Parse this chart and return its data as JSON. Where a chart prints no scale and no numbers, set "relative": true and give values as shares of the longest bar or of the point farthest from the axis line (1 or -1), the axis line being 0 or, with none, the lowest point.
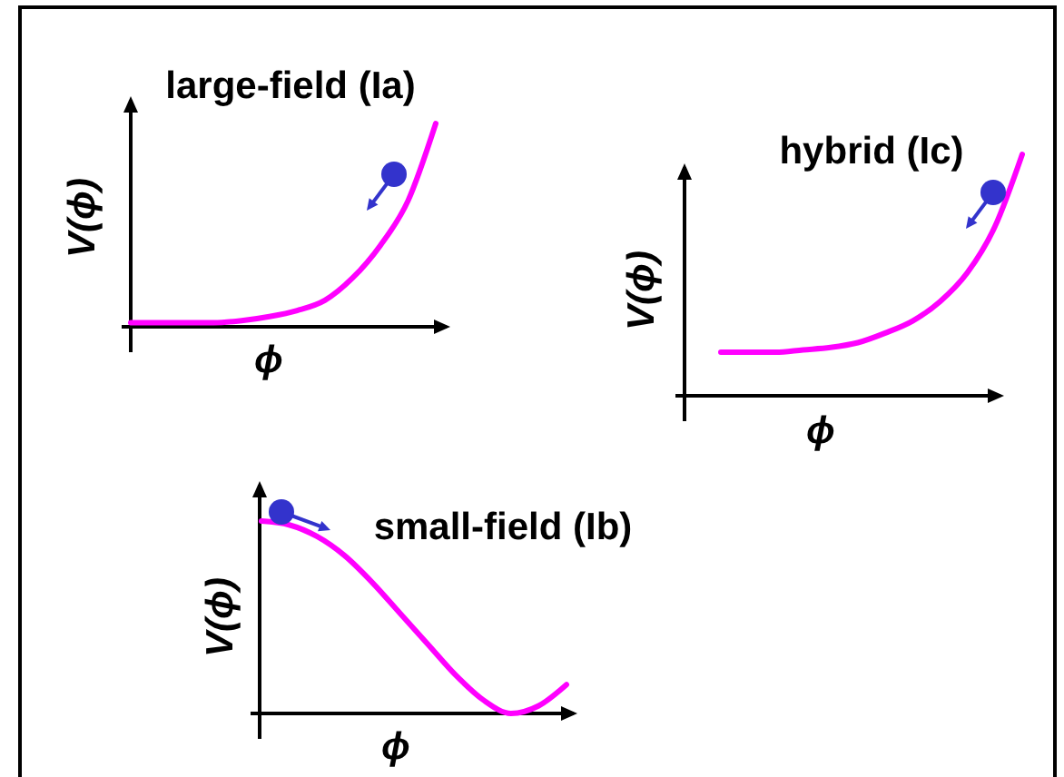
{
  "chart_data": [
    {
      "type": "line",
      "title": "large-field (Ia)",
      "xlabel": "ϕ",
      "ylabel": "V(ϕ)",
      "relative": true,
      "categories": [
        null,
        null,
        null,
        null,
        null,
        null,
        null,
        null,
        null,
        null,
        null,
        null
      ],
      "series": [
        {
          "color": "#ff00ff",
          "values": [
            0.02,
            0.02,
            0.02,
            0.02,
            0.03,
            0.05,
            0.08,
            0.13,
            0.24,
            0.4,
            0.62,
            1
          ]
        }
      ]
    },
    {
      "type": "line",
      "title": "hybrid (Ic)",
      "xlabel": "ϕ",
      "ylabel": "V(ϕ)",
      "relative": true,
      "categories": [
        null,
        null,
        null,
        null,
        null,
        null,
        null,
        null,
        null,
        null,
        null,
        null
      ],
      "series": [
        {
          "color": "#ff00ff",
          "values": [
            0.18,
            0.18,
            0.18,
            0.19,
            0.2,
            0.22,
            0.26,
            0.31,
            0.39,
            0.51,
            0.7,
            1
          ]
        }
      ]
    },
    {
      "type": "line",
      "title": "small-field (Ib)",
      "xlabel": "ϕ",
      "ylabel": "V(ϕ)",
      "relative": true,
      "categories": [
        null,
        null,
        null,
        null,
        null,
        null,
        null,
        null,
        null,
        null,
        null,
        null
      ],
      "series": [
        {
          "color": "#ff00ff",
          "values": [
            1,
            0.98,
            0.92,
            0.82,
            0.68,
            0.52,
            0.36,
            0.2,
            0.07,
            0,
            0.04,
            0.15
          ]
        }
      ]
    }
  ]
}
